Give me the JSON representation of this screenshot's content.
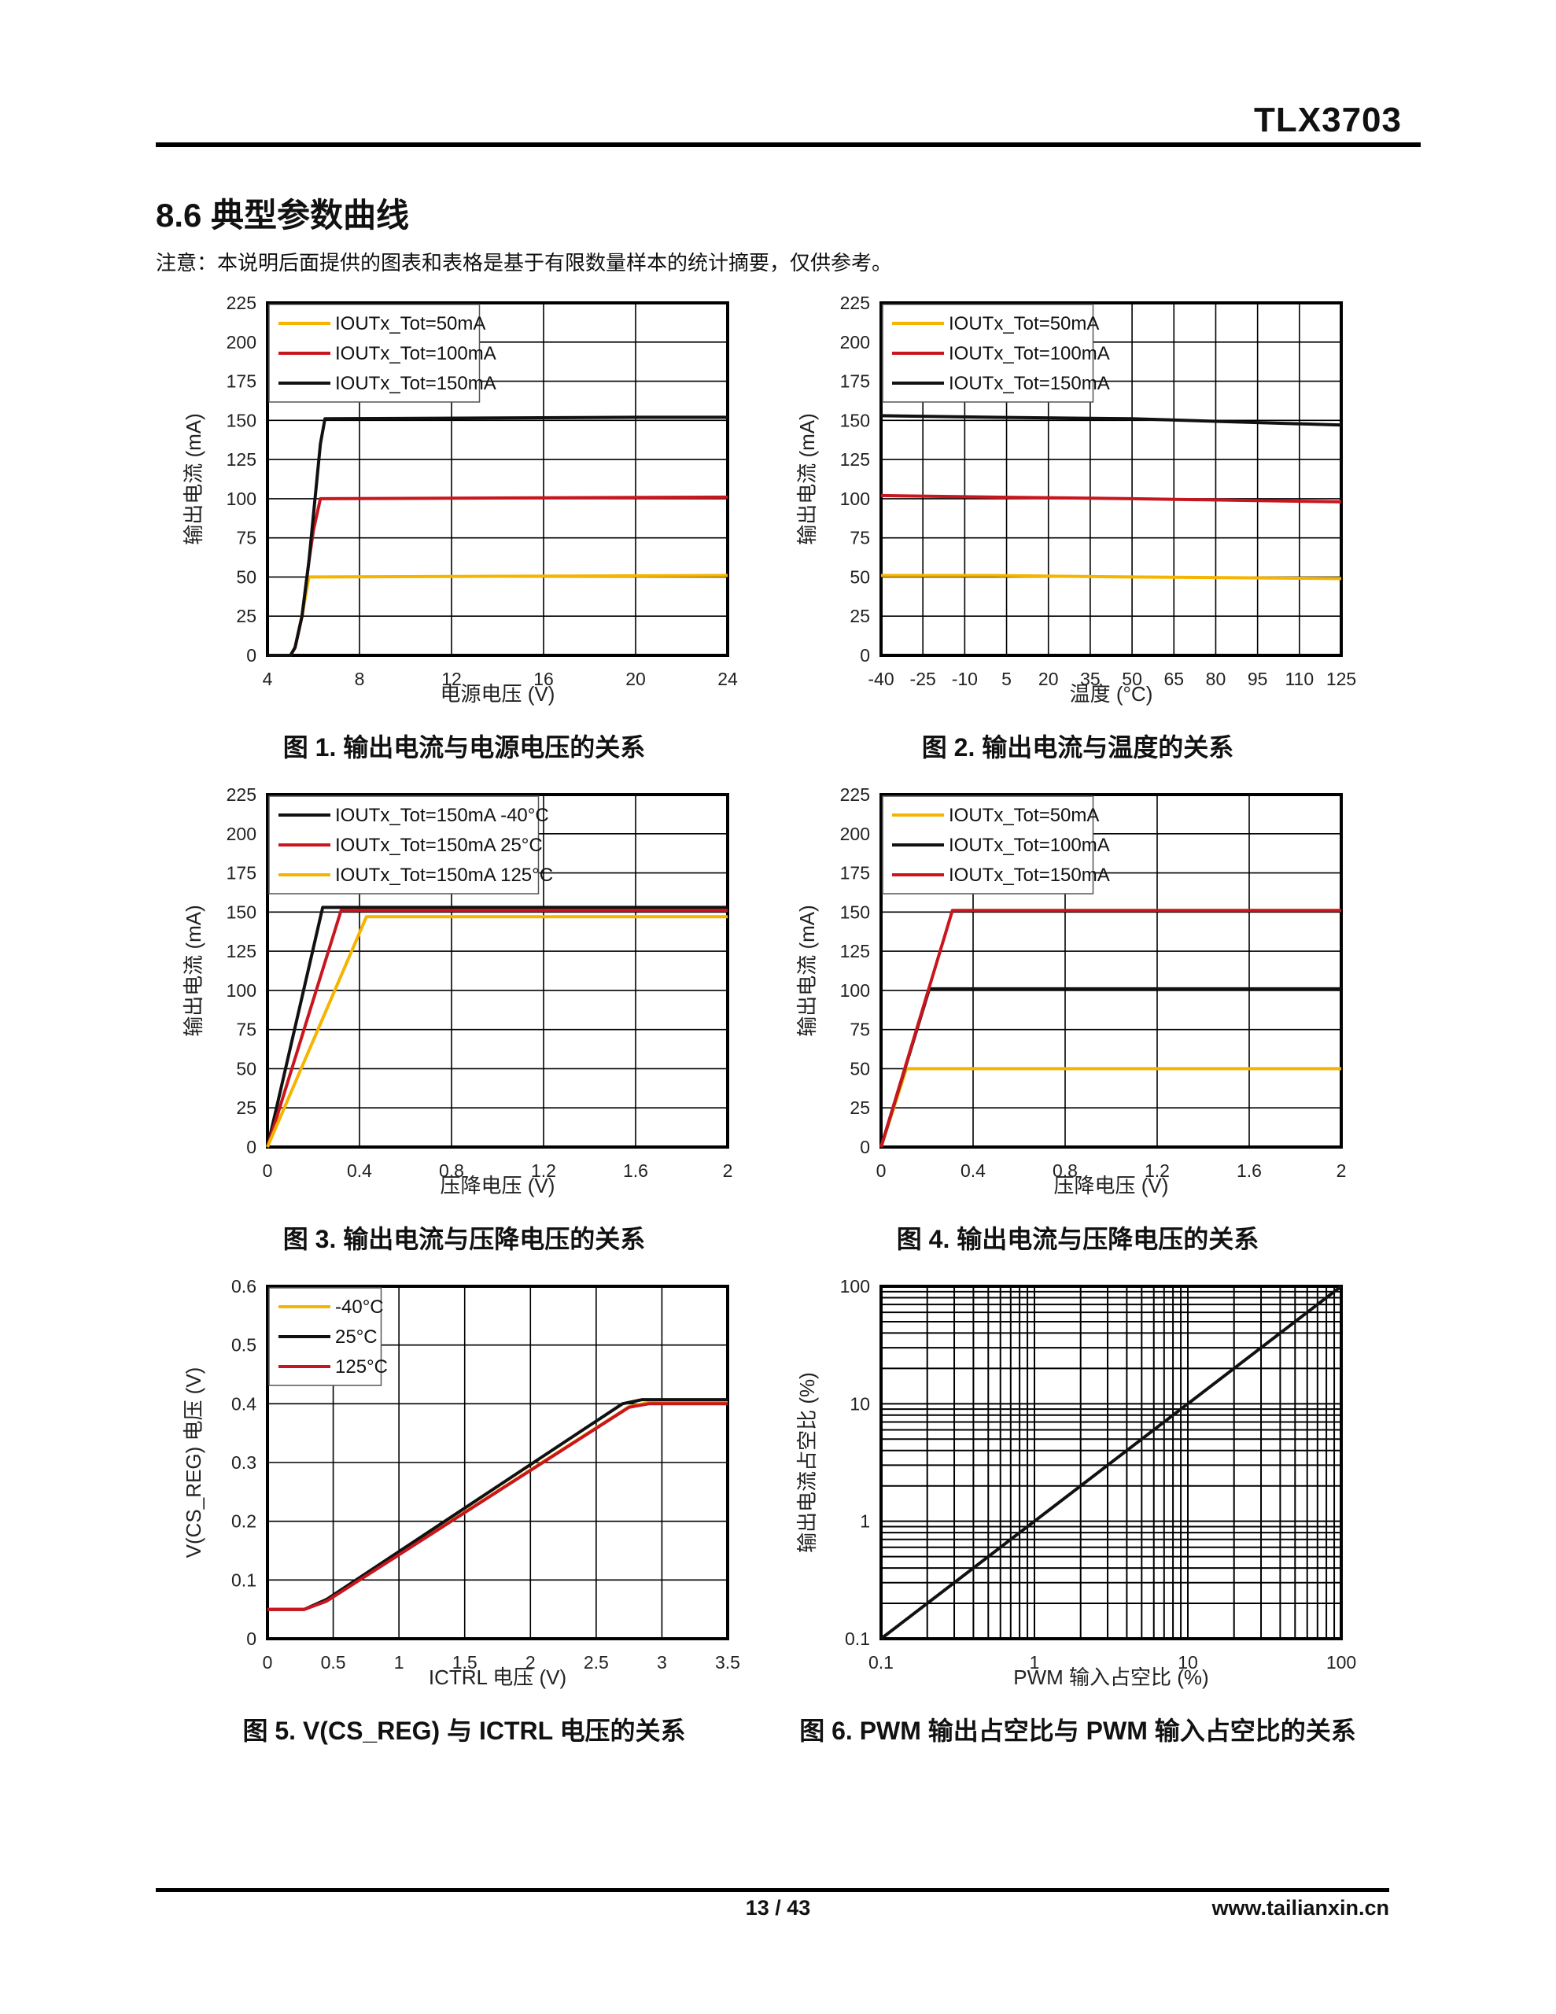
{
  "header": {
    "doc_title": "TLX3703"
  },
  "section": {
    "title": "8.6 典型参数曲线",
    "note": "注意：本说明后面提供的图表和表格是基于有限数量样本的统计摘要，仅供参考。"
  },
  "footer": {
    "page": "13 / 43",
    "website": "www.tailianxin.cn"
  },
  "colors": {
    "yellow": "#F5B400",
    "red": "#C8161E",
    "black": "#111111"
  },
  "chart_data": [
    {
      "id": "fig1",
      "type": "line",
      "caption": "图 1. 输出电流与电源电压的关系",
      "xlabel": "电源电压 (V)",
      "ylabel": "输出电流 (mA)",
      "xscale": "linear",
      "xlim": [
        4,
        24
      ],
      "ylim": [
        0,
        225
      ],
      "xticks": [
        4,
        8,
        12,
        16,
        20,
        24
      ],
      "yticks": [
        0,
        25,
        50,
        75,
        100,
        125,
        150,
        175,
        200,
        225
      ],
      "legend": "top-left",
      "series": [
        {
          "name": "IOUTx_Tot=50mA",
          "color": "yellow",
          "x": [
            4,
            5,
            5.2,
            5.5,
            5.8,
            6,
            24
          ],
          "y": [
            0,
            0,
            5,
            25,
            50,
            50,
            51
          ]
        },
        {
          "name": "IOUTx_Tot=100mA",
          "color": "red",
          "x": [
            4,
            5,
            5.2,
            5.5,
            5.8,
            6,
            6.3,
            24
          ],
          "y": [
            0,
            0,
            5,
            25,
            60,
            80,
            100,
            101
          ]
        },
        {
          "name": "IOUTx_Tot=150mA",
          "color": "black",
          "x": [
            4,
            5,
            5.2,
            5.5,
            5.8,
            6,
            6.3,
            6.5,
            20,
            24
          ],
          "y": [
            0,
            0,
            5,
            25,
            60,
            90,
            135,
            151,
            152,
            152
          ]
        }
      ]
    },
    {
      "id": "fig2",
      "type": "line",
      "caption": "图 2. 输出电流与温度的关系",
      "xlabel": "温度 (°C)",
      "ylabel": "输出电流 (mA)",
      "xscale": "linear",
      "xlim": [
        -40,
        125
      ],
      "ylim": [
        0,
        225
      ],
      "xticks": [
        -40,
        -25,
        -10,
        5,
        20,
        35,
        50,
        65,
        80,
        95,
        110,
        125
      ],
      "yticks": [
        0,
        25,
        50,
        75,
        100,
        125,
        150,
        175,
        200,
        225
      ],
      "legend": "top-left",
      "series": [
        {
          "name": "IOUTx_Tot=50mA",
          "color": "yellow",
          "x": [
            -40,
            0,
            50,
            125
          ],
          "y": [
            51,
            51,
            50,
            49
          ]
        },
        {
          "name": "IOUTx_Tot=100mA",
          "color": "red",
          "x": [
            -40,
            0,
            50,
            125
          ],
          "y": [
            102,
            101,
            100,
            98
          ]
        },
        {
          "name": "IOUTx_Tot=150mA",
          "color": "black",
          "x": [
            -40,
            0,
            50,
            125
          ],
          "y": [
            153,
            152,
            151,
            147
          ]
        }
      ]
    },
    {
      "id": "fig3",
      "type": "line",
      "caption": "图 3. 输出电流与压降电压的关系",
      "xlabel": "压降电压 (V)",
      "ylabel": "输出电流 (mA)",
      "xscale": "linear",
      "xlim": [
        0,
        2
      ],
      "ylim": [
        0,
        225
      ],
      "xticks": [
        0,
        0.4,
        0.8,
        1.2,
        1.6,
        2
      ],
      "yticks": [
        0,
        25,
        50,
        75,
        100,
        125,
        150,
        175,
        200,
        225
      ],
      "legend": "top-left",
      "series": [
        {
          "name": "IOUTx_Tot=150mA -40°C",
          "color": "black",
          "x": [
            0,
            0.24,
            2
          ],
          "y": [
            0,
            153,
            153
          ]
        },
        {
          "name": "IOUTx_Tot=150mA 25°C",
          "color": "red",
          "x": [
            0,
            0.32,
            2
          ],
          "y": [
            0,
            151,
            151
          ]
        },
        {
          "name": "IOUTx_Tot=150mA 125°C",
          "color": "yellow",
          "x": [
            0,
            0.43,
            2
          ],
          "y": [
            0,
            147,
            147
          ]
        }
      ]
    },
    {
      "id": "fig4",
      "type": "line",
      "caption": "图 4. 输出电流与压降电压的关系",
      "xlabel": "压降电压 (V)",
      "ylabel": "输出电流 (mA)",
      "xscale": "linear",
      "xlim": [
        0,
        2
      ],
      "ylim": [
        0,
        225
      ],
      "xticks": [
        0,
        0.4,
        0.8,
        1.2,
        1.6,
        2
      ],
      "yticks": [
        0,
        25,
        50,
        75,
        100,
        125,
        150,
        175,
        200,
        225
      ],
      "legend": "top-left",
      "series": [
        {
          "name": "IOUTx_Tot=50mA",
          "color": "yellow",
          "x": [
            0,
            0.11,
            2
          ],
          "y": [
            0,
            50,
            50
          ]
        },
        {
          "name": "IOUTx_Tot=100mA",
          "color": "black",
          "x": [
            0,
            0.21,
            2
          ],
          "y": [
            0,
            101,
            101
          ]
        },
        {
          "name": "IOUTx_Tot=150mA",
          "color": "red",
          "x": [
            0,
            0.31,
            2
          ],
          "y": [
            0,
            151,
            151
          ]
        }
      ]
    },
    {
      "id": "fig5",
      "type": "line",
      "caption": "图 5. V(CS_REG) 与 ICTRL 电压的关系",
      "xlabel": "ICTRL 电压 (V)",
      "ylabel": "V(CS_REG) 电压 (V)",
      "xscale": "linear",
      "xlim": [
        0,
        3.5
      ],
      "ylim": [
        0,
        0.6
      ],
      "xticks": [
        0,
        0.5,
        1,
        1.5,
        2,
        2.5,
        3,
        3.5
      ],
      "yticks": [
        0,
        0.1,
        0.2,
        0.3,
        0.4,
        0.5,
        0.6
      ],
      "legend": "top-left",
      "series": [
        {
          "name": "-40°C",
          "color": "yellow",
          "x": [
            0,
            0.28,
            0.45,
            2.75,
            2.9,
            3.5
          ],
          "y": [
            0.05,
            0.05,
            0.065,
            0.395,
            0.402,
            0.402
          ]
        },
        {
          "name": "25°C",
          "color": "black",
          "x": [
            0,
            0.28,
            0.45,
            2.7,
            2.85,
            3.5
          ],
          "y": [
            0.05,
            0.05,
            0.067,
            0.4,
            0.407,
            0.407
          ]
        },
        {
          "name": "125°C",
          "color": "red",
          "x": [
            0,
            0.28,
            0.45,
            2.75,
            2.9,
            3.5
          ],
          "y": [
            0.05,
            0.05,
            0.064,
            0.394,
            0.4,
            0.4
          ]
        }
      ]
    },
    {
      "id": "fig6",
      "type": "line",
      "caption": "图 6. PWM 输出占空比与 PWM 输入占空比的关系",
      "xlabel": "PWM 输入占空比 (%)",
      "ylabel": "输出电流占空比 (%)",
      "xscale": "log",
      "yscale": "log",
      "xlim": [
        0.1,
        100
      ],
      "ylim": [
        0.1,
        100
      ],
      "xticks": [
        0.1,
        1,
        10,
        100
      ],
      "yticks": [
        0.1,
        1,
        10,
        100
      ],
      "legend": "none",
      "series": [
        {
          "name": "duty",
          "color": "black",
          "x": [
            0.1,
            100
          ],
          "y": [
            0.1,
            100
          ]
        }
      ]
    }
  ]
}
